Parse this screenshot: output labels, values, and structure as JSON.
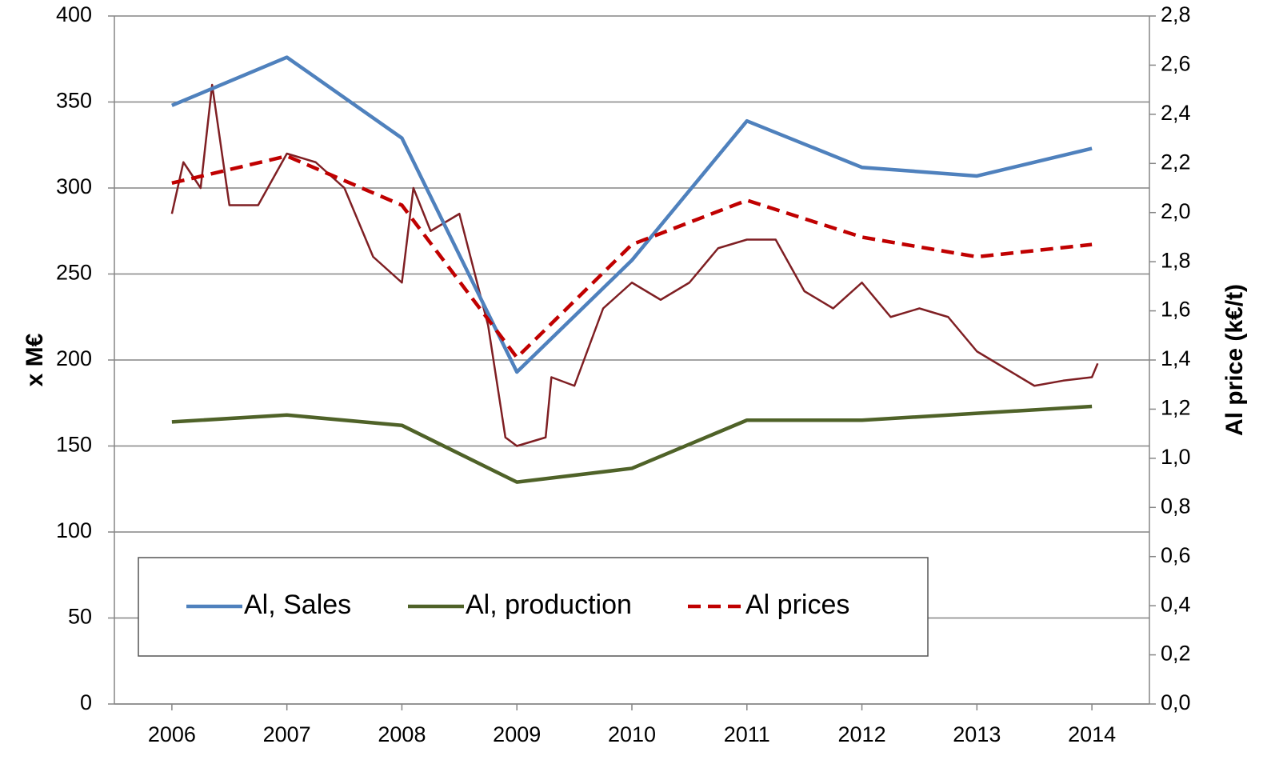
{
  "chart_data": {
    "type": "line",
    "y_label": "x M€",
    "y2_label": "Al price (k€/t)",
    "xlim": [
      2005.5,
      2014.5
    ],
    "xticks": [
      2006,
      2007,
      2008,
      2009,
      2010,
      2011,
      2012,
      2013,
      2014
    ],
    "ylim": [
      0,
      400
    ],
    "yticks": [
      0,
      50,
      100,
      150,
      200,
      250,
      300,
      350,
      400
    ],
    "y2lim": [
      0,
      2.8
    ],
    "y2ticks": [
      {
        "value": 0,
        "label": "0,0"
      },
      {
        "value": 0.2,
        "label": "0,2"
      },
      {
        "value": 0.4,
        "label": "0,4"
      },
      {
        "value": 0.6,
        "label": "0,6"
      },
      {
        "value": 0.8,
        "label": "0,8"
      },
      {
        "value": 1.0,
        "label": "1,0"
      },
      {
        "value": 1.2,
        "label": "1,2"
      },
      {
        "value": 1.4,
        "label": "1,4"
      },
      {
        "value": 1.6,
        "label": "1,6"
      },
      {
        "value": 1.8,
        "label": "1,8"
      },
      {
        "value": 2.0,
        "label": "2,0"
      },
      {
        "value": 2.2,
        "label": "2,2"
      },
      {
        "value": 2.4,
        "label": "2,4"
      },
      {
        "value": 2.6,
        "label": "2,6"
      },
      {
        "value": 2.8,
        "label": "2,8"
      }
    ],
    "grid": true,
    "series": [
      {
        "color": "#7f1f23",
        "x": [
          2006.0,
          2006.1,
          2006.25,
          2006.35,
          2006.5,
          2006.75,
          2007.0,
          2007.25,
          2007.5,
          2007.75,
          2008.0,
          2008.1,
          2008.25,
          2008.5,
          2008.75,
          2008.9,
          2009.0,
          2009.25,
          2009.3,
          2009.5,
          2009.75,
          2010.0,
          2010.25,
          2010.5,
          2010.75,
          2011.0,
          2011.25,
          2011.5,
          2011.75,
          2012.0,
          2012.25,
          2012.5,
          2012.75,
          2013.0,
          2013.25,
          2013.5,
          2013.75,
          2014.0,
          2014.05
        ],
        "values": [
          285,
          315,
          300,
          360,
          290,
          290,
          320,
          315,
          300,
          260,
          245,
          300,
          275,
          285,
          220,
          155,
          150,
          155,
          190,
          185,
          230,
          245,
          235,
          245,
          265,
          270,
          270,
          240,
          230,
          245,
          225,
          230,
          225,
          205,
          195,
          185,
          188,
          190,
          198
        ]
      },
      {
        "name": "Al, Sales",
        "color": "#4f81bd",
        "x": [
          2006,
          2007,
          2008,
          2009,
          2010,
          2011,
          2012,
          2013,
          2014
        ],
        "values": [
          348,
          376,
          329,
          193,
          258,
          339,
          312,
          307,
          323
        ]
      },
      {
        "name": "Al, production",
        "color": "#4f6228",
        "x": [
          2006,
          2007,
          2008,
          2009,
          2010,
          2011,
          2012,
          2013,
          2014
        ],
        "values": [
          164,
          168,
          162,
          129,
          137,
          165,
          165,
          169,
          173
        ]
      },
      {
        "name": "Al prices",
        "color": "#c00000",
        "dashed": true,
        "axis": "y2",
        "x": [
          2006,
          2007,
          2008,
          2009,
          2010,
          2011,
          2012,
          2013,
          2014
        ],
        "values": [
          2.12,
          2.23,
          2.03,
          1.41,
          1.87,
          2.05,
          1.9,
          1.82,
          1.87
        ]
      }
    ]
  }
}
